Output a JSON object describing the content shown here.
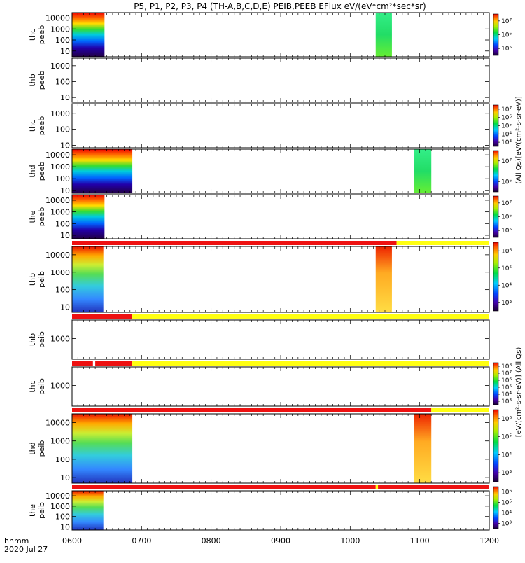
{
  "figure": {
    "title": "P5, P1, P2, P3, P4 (TH-A,B,C,D,E) PEIB,PEEB EFlux eV/(eV*cm²*sec*sr)",
    "footer_label": "hhmm",
    "footer_date": "2020 Jul 27",
    "colorbar_label_peeb": "(All Qs)[eV/(cm²-s-sr-eV)]",
    "colorbar_label_peib": "[eV/(cm²-s-sr-eV)] (All Qs)"
  },
  "chart_data": {
    "type": "heatmap",
    "x_axis": {
      "label": "hhmm",
      "range": [
        "0600",
        "1200"
      ],
      "ticks": [
        "0600",
        "0700",
        "0800",
        "0900",
        "1000",
        "1100",
        "1200"
      ]
    },
    "panels": [
      {
        "id": "thb-peeb-A",
        "species": "peeb",
        "name1": "thc",
        "name2": "peeb",
        "yticks": [
          "10",
          "100",
          "1000",
          "10000"
        ],
        "ylog": [
          3,
          30000
        ],
        "colorbar": [
          "10⁵",
          "10⁶",
          "10⁷"
        ],
        "blocks": [
          {
            "x0": 600,
            "x1": 628,
            "kind": "spectrum"
          },
          {
            "x0": 1022,
            "x1": 1036,
            "kind": "green"
          }
        ],
        "status_bar": null
      },
      {
        "id": "thb-peeb",
        "species": "peeb",
        "name1": "thb",
        "name2": "peeb",
        "yticks": [
          "10",
          "100",
          "1000"
        ],
        "ylog": [
          5,
          3000
        ],
        "colorbar": null,
        "blocks": [],
        "status_bar": null
      },
      {
        "id": "thc-peeb",
        "species": "peeb",
        "name1": "thc",
        "name2": "peeb",
        "yticks": [
          "10",
          "100",
          "1000"
        ],
        "ylog": [
          7,
          4000
        ],
        "colorbar": [
          "10³",
          "10⁴",
          "10⁵",
          "10⁶",
          "10⁷"
        ],
        "blocks": [],
        "status_bar": null
      },
      {
        "id": "thd-peeb",
        "species": "peeb",
        "name1": "thd",
        "name2": "peeb",
        "yticks": [
          "10",
          "100",
          "1000",
          "10000"
        ],
        "ylog": [
          6,
          30000
        ],
        "colorbar": [
          "10⁶",
          "10⁷"
        ],
        "blocks": [
          {
            "x0": 600,
            "x1": 652,
            "kind": "spectrum"
          },
          {
            "x0": 1055,
            "x1": 1070,
            "kind": "green"
          }
        ],
        "status_bar": null
      },
      {
        "id": "the-peeb",
        "species": "peeb",
        "name1": "the",
        "name2": "peeb",
        "yticks": [
          "10",
          "100",
          "1000",
          "10000"
        ],
        "ylog": [
          5,
          30000
        ],
        "colorbar": [
          "10⁵",
          "10⁶",
          "10⁷"
        ],
        "blocks": [
          {
            "x0": 600,
            "x1": 628,
            "kind": "spectrum"
          }
        ],
        "status_bar": null
      },
      {
        "id": "thb-peib",
        "species": "peib",
        "name1": "thb",
        "name2": "peib",
        "yticks": [
          "10",
          "100",
          "1000",
          "10000"
        ],
        "ylog": [
          5,
          30000
        ],
        "colorbar": [
          "10³",
          "10⁴",
          "10⁵",
          "10⁶"
        ],
        "blocks": [
          {
            "x0": 600,
            "x1": 627,
            "kind": "ion"
          },
          {
            "x0": 1022,
            "x1": 1036,
            "kind": "ion_orange"
          }
        ],
        "status_bar": [
          {
            "x0": 600,
            "x1": 1040,
            "color": "#ee1111"
          },
          {
            "x0": 1040,
            "x1": 1200,
            "color": "#ffff11"
          }
        ]
      },
      {
        "id": "thb-peib-2",
        "species": "peib",
        "name1": "thb",
        "name2": "peib",
        "yticks": [
          "1000"
        ],
        "ylog": [
          50,
          15000
        ],
        "colorbar": null,
        "blocks": [],
        "status_bar": [
          {
            "x0": 600,
            "x1": 652,
            "color": "#ee1111"
          },
          {
            "x0": 652,
            "x1": 1200,
            "color": "#ffff11"
          }
        ]
      },
      {
        "id": "thc-peib",
        "species": "peib",
        "name1": "thc",
        "name2": "peib",
        "yticks": [
          "1000"
        ],
        "ylog": [
          50,
          15000
        ],
        "colorbar": [
          "10³",
          "10⁴",
          "10⁵",
          "10⁶",
          "10⁷",
          "10⁸"
        ],
        "blocks": [],
        "status_bar": [
          {
            "x0": 600,
            "x1": 618,
            "color": "#ee1111"
          },
          {
            "x0": 620,
            "x1": 652,
            "color": "#ee1111"
          },
          {
            "x0": 652,
            "x1": 1200,
            "color": "#ffff11"
          }
        ]
      },
      {
        "id": "thd-peib",
        "species": "peib",
        "name1": "thd",
        "name2": "peib",
        "yticks": [
          "10",
          "100",
          "1000",
          "10000"
        ],
        "ylog": [
          5,
          30000
        ],
        "colorbar": [
          "10³",
          "10⁴",
          "10⁵",
          "10⁶"
        ],
        "blocks": [
          {
            "x0": 600,
            "x1": 652,
            "kind": "ion"
          },
          {
            "x0": 1055,
            "x1": 1070,
            "kind": "ion_orange"
          }
        ],
        "status_bar": [
          {
            "x0": 600,
            "x1": 1070,
            "color": "#ee1111"
          },
          {
            "x0": 1070,
            "x1": 1200,
            "color": "#ffff11"
          }
        ]
      },
      {
        "id": "the-peib",
        "species": "peib",
        "name1": "the",
        "name2": "peib",
        "yticks": [
          "10",
          "100",
          "1000",
          "10000"
        ],
        "ylog": [
          5,
          30000
        ],
        "colorbar": [
          "10³",
          "10⁴",
          "10⁵",
          "10⁶"
        ],
        "blocks": [
          {
            "x0": 600,
            "x1": 627,
            "kind": "ion"
          }
        ],
        "status_bar": [
          {
            "x0": 600,
            "x1": 982,
            "color": "#ee1111"
          },
          {
            "x0": 982,
            "x1": 984,
            "color": "#ffff11"
          },
          {
            "x0": 984,
            "x1": 1200,
            "color": "#ee1111"
          }
        ]
      }
    ]
  }
}
